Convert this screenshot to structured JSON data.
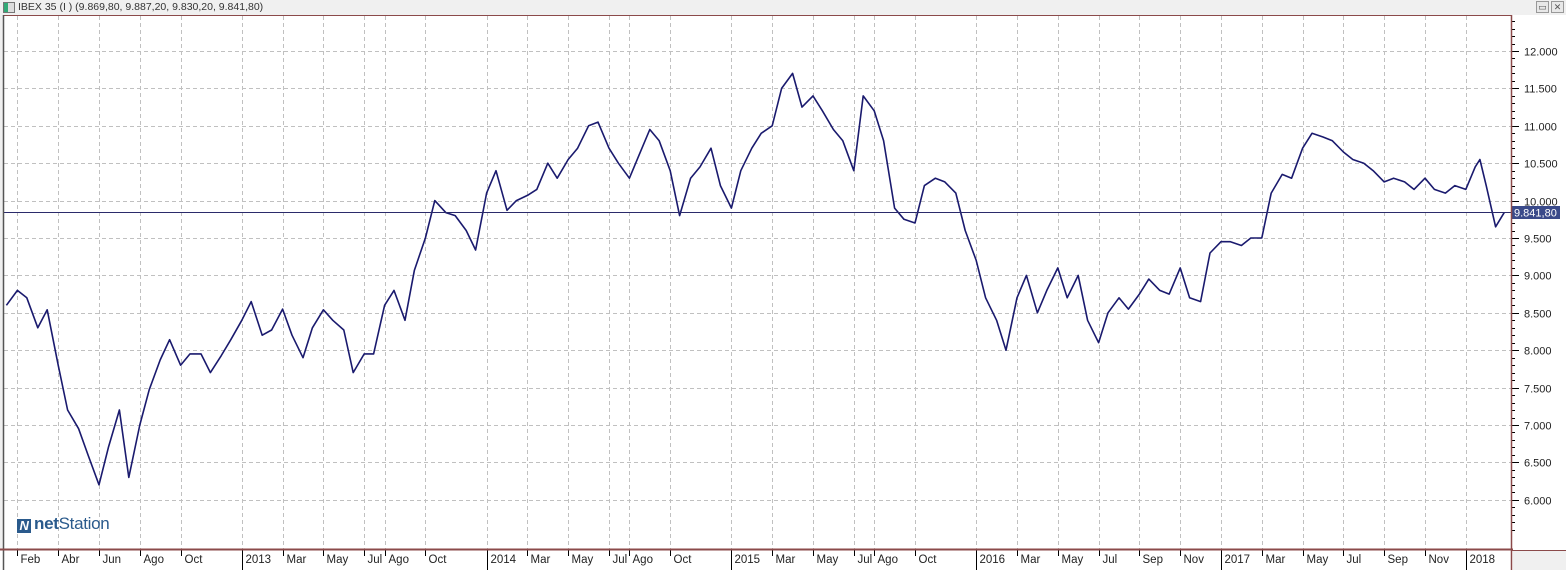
{
  "window": {
    "title": "IBEX 35 (I ) (9.869,80, 9.887,20, 9.830,20, 9.841,80)",
    "restore_icon": "restore-icon",
    "close_icon": "close-icon"
  },
  "logo": {
    "prefix": "net",
    "suffix": "Station"
  },
  "colors": {
    "line": "#1a1a6e",
    "grid": "#c0c0c0",
    "frame": "#8b4a4a",
    "last_price_bg": "#3a4a8a"
  },
  "chart_data": {
    "type": "line",
    "title": "IBEX 35 (I )",
    "ohlc": {
      "open": "9.869,80",
      "high": "9.887,20",
      "low": "9.830,20",
      "close": "9.841,80"
    },
    "last_price": 9841.8,
    "last_price_label": "9.841,80",
    "ylim": [
      5500,
      12500
    ],
    "y_ticks": [
      {
        "value": 6000,
        "label": "6.000"
      },
      {
        "value": 6500,
        "label": "6.500"
      },
      {
        "value": 7000,
        "label": "7.000"
      },
      {
        "value": 7500,
        "label": "7.500"
      },
      {
        "value": 8000,
        "label": "8.000"
      },
      {
        "value": 8500,
        "label": "8.500"
      },
      {
        "value": 9000,
        "label": "9.000"
      },
      {
        "value": 9500,
        "label": "9.500"
      },
      {
        "value": 10000,
        "label": "10.000"
      },
      {
        "value": 10500,
        "label": "10.500"
      },
      {
        "value": 11000,
        "label": "11.000"
      },
      {
        "value": 11500,
        "label": "11.500"
      },
      {
        "value": 12000,
        "label": "12.000"
      }
    ],
    "x_ticks": [
      {
        "date": "2012-02-01",
        "label": "Feb"
      },
      {
        "date": "2012-04-01",
        "label": "Abr"
      },
      {
        "date": "2012-06-01",
        "label": "Jun"
      },
      {
        "date": "2012-08-01",
        "label": "Ago"
      },
      {
        "date": "2012-10-01",
        "label": "Oct"
      },
      {
        "date": "2013-01-01",
        "label": "2013",
        "year": true
      },
      {
        "date": "2013-03-01",
        "label": "Mar"
      },
      {
        "date": "2013-05-01",
        "label": "May"
      },
      {
        "date": "2013-07-01",
        "label": "Jul"
      },
      {
        "date": "2013-08-01",
        "label": "Ago"
      },
      {
        "date": "2013-10-01",
        "label": "Oct"
      },
      {
        "date": "2014-01-01",
        "label": "2014",
        "year": true
      },
      {
        "date": "2014-03-01",
        "label": "Mar"
      },
      {
        "date": "2014-05-01",
        "label": "May"
      },
      {
        "date": "2014-07-01",
        "label": "Jul"
      },
      {
        "date": "2014-08-01",
        "label": "Ago"
      },
      {
        "date": "2014-10-01",
        "label": "Oct"
      },
      {
        "date": "2015-01-01",
        "label": "2015",
        "year": true
      },
      {
        "date": "2015-03-01",
        "label": "Mar"
      },
      {
        "date": "2015-05-01",
        "label": "May"
      },
      {
        "date": "2015-07-01",
        "label": "Jul"
      },
      {
        "date": "2015-08-01",
        "label": "Ago"
      },
      {
        "date": "2015-10-01",
        "label": "Oct"
      },
      {
        "date": "2016-01-01",
        "label": "2016",
        "year": true
      },
      {
        "date": "2016-03-01",
        "label": "Mar"
      },
      {
        "date": "2016-05-01",
        "label": "May"
      },
      {
        "date": "2016-07-01",
        "label": "Jul"
      },
      {
        "date": "2016-09-01",
        "label": "Sep"
      },
      {
        "date": "2016-11-01",
        "label": "Nov"
      },
      {
        "date": "2017-01-01",
        "label": "2017",
        "year": true
      },
      {
        "date": "2017-03-01",
        "label": "Mar"
      },
      {
        "date": "2017-05-01",
        "label": "May"
      },
      {
        "date": "2017-07-01",
        "label": "Jul"
      },
      {
        "date": "2017-09-01",
        "label": "Sep"
      },
      {
        "date": "2017-11-01",
        "label": "Nov"
      },
      {
        "date": "2018-01-01",
        "label": "2018",
        "year": true
      }
    ],
    "grid": true,
    "series": [
      {
        "points": [
          [
            "2012-01-15",
            8600
          ],
          [
            "2012-02-01",
            8800
          ],
          [
            "2012-02-15",
            8700
          ],
          [
            "2012-03-01",
            8300
          ],
          [
            "2012-03-15",
            8540
          ],
          [
            "2012-04-01",
            7800
          ],
          [
            "2012-04-15",
            7200
          ],
          [
            "2012-05-01",
            6950
          ],
          [
            "2012-05-15",
            6600
          ],
          [
            "2012-06-01",
            6200
          ],
          [
            "2012-06-15",
            6700
          ],
          [
            "2012-07-01",
            7200
          ],
          [
            "2012-07-15",
            6300
          ],
          [
            "2012-08-01",
            7000
          ],
          [
            "2012-08-15",
            7470
          ],
          [
            "2012-09-01",
            7870
          ],
          [
            "2012-09-15",
            8140
          ],
          [
            "2012-10-01",
            7800
          ],
          [
            "2012-10-15",
            7950
          ],
          [
            "2012-11-01",
            7950
          ],
          [
            "2012-11-15",
            7700
          ],
          [
            "2012-12-01",
            7930
          ],
          [
            "2012-12-15",
            8140
          ],
          [
            "2013-01-01",
            8400
          ],
          [
            "2013-01-15",
            8650
          ],
          [
            "2013-02-01",
            8200
          ],
          [
            "2013-02-15",
            8270
          ],
          [
            "2013-03-01",
            8550
          ],
          [
            "2013-03-15",
            8200
          ],
          [
            "2013-04-01",
            7900
          ],
          [
            "2013-04-15",
            8300
          ],
          [
            "2013-05-01",
            8540
          ],
          [
            "2013-05-15",
            8400
          ],
          [
            "2013-06-01",
            8270
          ],
          [
            "2013-06-15",
            7700
          ],
          [
            "2013-07-01",
            7950
          ],
          [
            "2013-07-15",
            7950
          ],
          [
            "2013-08-01",
            8600
          ],
          [
            "2013-08-15",
            8800
          ],
          [
            "2013-09-01",
            8400
          ],
          [
            "2013-09-15",
            9070
          ],
          [
            "2013-10-01",
            9500
          ],
          [
            "2013-10-15",
            10000
          ],
          [
            "2013-11-01",
            9840
          ],
          [
            "2013-11-15",
            9800
          ],
          [
            "2013-12-01",
            9600
          ],
          [
            "2013-12-15",
            9340
          ],
          [
            "2014-01-01",
            10100
          ],
          [
            "2014-01-15",
            10400
          ],
          [
            "2014-02-01",
            9870
          ],
          [
            "2014-02-15",
            10000
          ],
          [
            "2014-03-01",
            10070
          ],
          [
            "2014-03-15",
            10150
          ],
          [
            "2014-04-01",
            10500
          ],
          [
            "2014-04-15",
            10300
          ],
          [
            "2014-05-01",
            10550
          ],
          [
            "2014-05-15",
            10700
          ],
          [
            "2014-06-01",
            11000
          ],
          [
            "2014-06-15",
            11050
          ],
          [
            "2014-07-01",
            10700
          ],
          [
            "2014-07-15",
            10500
          ],
          [
            "2014-08-01",
            10300
          ],
          [
            "2014-08-15",
            10600
          ],
          [
            "2014-09-01",
            10950
          ],
          [
            "2014-09-15",
            10800
          ],
          [
            "2014-10-01",
            10400
          ],
          [
            "2014-10-15",
            9800
          ],
          [
            "2014-11-01",
            10300
          ],
          [
            "2014-11-15",
            10450
          ],
          [
            "2014-12-01",
            10700
          ],
          [
            "2014-12-15",
            10200
          ],
          [
            "2015-01-01",
            9900
          ],
          [
            "2015-01-15",
            10400
          ],
          [
            "2015-02-01",
            10700
          ],
          [
            "2015-02-15",
            10900
          ],
          [
            "2015-03-01",
            11000
          ],
          [
            "2015-03-15",
            11500
          ],
          [
            "2015-04-01",
            11700
          ],
          [
            "2015-04-15",
            11250
          ],
          [
            "2015-05-01",
            11400
          ],
          [
            "2015-05-15",
            11200
          ],
          [
            "2015-06-01",
            10950
          ],
          [
            "2015-06-15",
            10800
          ],
          [
            "2015-07-01",
            10400
          ],
          [
            "2015-07-15",
            11400
          ],
          [
            "2015-08-01",
            11200
          ],
          [
            "2015-08-15",
            10800
          ],
          [
            "2015-09-01",
            9900
          ],
          [
            "2015-09-15",
            9750
          ],
          [
            "2015-10-01",
            9700
          ],
          [
            "2015-10-15",
            10200
          ],
          [
            "2015-11-01",
            10300
          ],
          [
            "2015-11-15",
            10250
          ],
          [
            "2015-12-01",
            10100
          ],
          [
            "2015-12-15",
            9600
          ],
          [
            "2016-01-01",
            9200
          ],
          [
            "2016-01-15",
            8700
          ],
          [
            "2016-02-01",
            8400
          ],
          [
            "2016-02-15",
            8000
          ],
          [
            "2016-03-01",
            8700
          ],
          [
            "2016-03-15",
            9000
          ],
          [
            "2016-04-01",
            8500
          ],
          [
            "2016-04-15",
            8800
          ],
          [
            "2016-05-01",
            9100
          ],
          [
            "2016-05-15",
            8700
          ],
          [
            "2016-06-01",
            9000
          ],
          [
            "2016-06-15",
            8400
          ],
          [
            "2016-07-01",
            8100
          ],
          [
            "2016-07-15",
            8500
          ],
          [
            "2016-08-01",
            8700
          ],
          [
            "2016-08-15",
            8550
          ],
          [
            "2016-09-01",
            8750
          ],
          [
            "2016-09-15",
            8950
          ],
          [
            "2016-10-01",
            8800
          ],
          [
            "2016-10-15",
            8750
          ],
          [
            "2016-11-01",
            9100
          ],
          [
            "2016-11-15",
            8700
          ],
          [
            "2016-12-01",
            8650
          ],
          [
            "2016-12-15",
            9300
          ],
          [
            "2017-01-01",
            9450
          ],
          [
            "2017-01-15",
            9450
          ],
          [
            "2017-02-01",
            9400
          ],
          [
            "2017-02-15",
            9500
          ],
          [
            "2017-03-01",
            9500
          ],
          [
            "2017-03-15",
            10100
          ],
          [
            "2017-04-01",
            10350
          ],
          [
            "2017-04-15",
            10300
          ],
          [
            "2017-05-01",
            10700
          ],
          [
            "2017-05-15",
            10900
          ],
          [
            "2017-06-01",
            10850
          ],
          [
            "2017-06-15",
            10800
          ],
          [
            "2017-07-01",
            10650
          ],
          [
            "2017-07-15",
            10550
          ],
          [
            "2017-08-01",
            10500
          ],
          [
            "2017-08-15",
            10400
          ],
          [
            "2017-09-01",
            10250
          ],
          [
            "2017-09-15",
            10300
          ],
          [
            "2017-10-01",
            10250
          ],
          [
            "2017-10-15",
            10150
          ],
          [
            "2017-11-01",
            10300
          ],
          [
            "2017-11-15",
            10150
          ],
          [
            "2017-12-01",
            10100
          ],
          [
            "2017-12-15",
            10200
          ],
          [
            "2018-01-01",
            10150
          ],
          [
            "2018-01-15",
            10450
          ],
          [
            "2018-01-22",
            10550
          ],
          [
            "2018-02-01",
            10200
          ],
          [
            "2018-02-15",
            9650
          ],
          [
            "2018-02-28",
            9842
          ]
        ]
      }
    ]
  }
}
